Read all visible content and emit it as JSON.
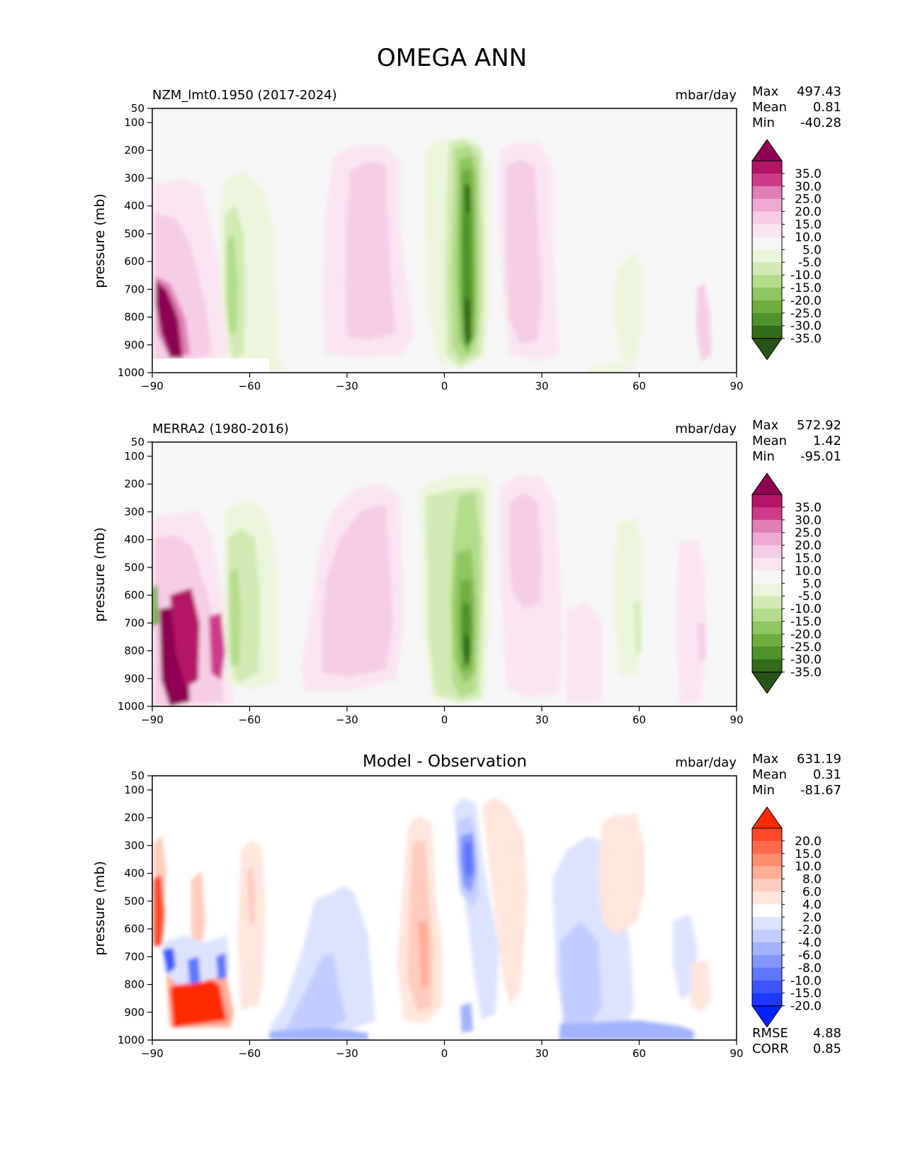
{
  "figure": {
    "title": "OMEGA ANN"
  },
  "chart_data": [
    {
      "type": "heatmap",
      "id": "model",
      "title": "NZM_lmt0.1950 (2017-2024)",
      "units": "mbar/day",
      "ylabel": "pressure (mb)",
      "xlim": [
        -90,
        90
      ],
      "ylim": [
        1000,
        50
      ],
      "xticks": [
        "−90",
        "−60",
        "−30",
        "0",
        "30",
        "60",
        "90"
      ],
      "xtick_values": [
        -90,
        -60,
        -30,
        0,
        30,
        60,
        90
      ],
      "yticks": [
        "50",
        "100",
        "200",
        "300",
        "400",
        "500",
        "600",
        "700",
        "800",
        "900",
        "1000"
      ],
      "ytick_values": [
        50,
        100,
        200,
        300,
        400,
        500,
        600,
        700,
        800,
        900,
        1000
      ],
      "stats": [
        {
          "label": "Max",
          "value": "497.43"
        },
        {
          "label": "Mean",
          "value": "0.81"
        },
        {
          "label": "Min",
          "value": "-40.28"
        }
      ],
      "colorbar": {
        "labels": [
          "35.0",
          "30.0",
          "25.0",
          "20.0",
          "15.0",
          "10.0",
          "5.0",
          "-5.0",
          "-10.0",
          "-15.0",
          "-20.0",
          "-25.0",
          "-30.0",
          "-35.0"
        ],
        "colors": [
          "#8e0152",
          "#b31466",
          "#ce3a8c",
          "#e07fb5",
          "#eeaad2",
          "#f6cde6",
          "#f9e5f0",
          "#f6f6f6",
          "#ebf5dc",
          "#d2ebb4",
          "#b2dc8a",
          "#8fc663",
          "#6fad3c",
          "#4d922b",
          "#326b1a",
          "#275419"
        ]
      },
      "features": [
        {
          "lat": -84,
          "plev": 830,
          "value": 40
        },
        {
          "lat": -80,
          "plev": 600,
          "value": 12
        },
        {
          "lat": -65,
          "plev": 650,
          "value": -18
        },
        {
          "lat": -25,
          "plev": 500,
          "value": 14
        },
        {
          "lat": 7,
          "plev": 600,
          "value": -38
        },
        {
          "lat": 24,
          "plev": 450,
          "value": 15
        },
        {
          "lat": 58,
          "plev": 780,
          "value": -6
        },
        {
          "lat": 80,
          "plev": 850,
          "value": 8
        }
      ]
    },
    {
      "type": "heatmap",
      "id": "obs",
      "title": "MERRA2 (1980-2016)",
      "units": "mbar/day",
      "ylabel": "pressure (mb)",
      "xlim": [
        -90,
        90
      ],
      "ylim": [
        1000,
        50
      ],
      "xticks": [
        "−90",
        "−60",
        "−30",
        "0",
        "30",
        "60",
        "90"
      ],
      "xtick_values": [
        -90,
        -60,
        -30,
        0,
        30,
        60,
        90
      ],
      "yticks": [
        "50",
        "100",
        "200",
        "300",
        "400",
        "500",
        "600",
        "700",
        "800",
        "900",
        "1000"
      ],
      "ytick_values": [
        50,
        100,
        200,
        300,
        400,
        500,
        600,
        700,
        800,
        900,
        1000
      ],
      "stats": [
        {
          "label": "Max",
          "value": "572.92"
        },
        {
          "label": "Mean",
          "value": "1.42"
        },
        {
          "label": "Min",
          "value": "-95.01"
        }
      ],
      "colorbar": {
        "labels": [
          "35.0",
          "30.0",
          "25.0",
          "20.0",
          "15.0",
          "10.0",
          "5.0",
          "-5.0",
          "-10.0",
          "-15.0",
          "-20.0",
          "-25.0",
          "-30.0",
          "-35.0"
        ],
        "colors": [
          "#8e0152",
          "#b31466",
          "#ce3a8c",
          "#e07fb5",
          "#eeaad2",
          "#f6cde6",
          "#f9e5f0",
          "#f6f6f6",
          "#ebf5dc",
          "#d2ebb4",
          "#b2dc8a",
          "#8fc663",
          "#6fad3c",
          "#4d922b",
          "#326b1a",
          "#275419"
        ]
      },
      "features": [
        {
          "lat": -84,
          "plev": 800,
          "value": 40
        },
        {
          "lat": -72,
          "plev": 750,
          "value": 30
        },
        {
          "lat": -64,
          "plev": 650,
          "value": -20
        },
        {
          "lat": -25,
          "plev": 550,
          "value": 12
        },
        {
          "lat": 7,
          "plev": 650,
          "value": -36
        },
        {
          "lat": 25,
          "plev": 500,
          "value": 12
        },
        {
          "lat": 58,
          "plev": 700,
          "value": -7
        },
        {
          "lat": 80,
          "plev": 760,
          "value": 12
        }
      ]
    },
    {
      "type": "heatmap",
      "id": "diff",
      "title": "Model - Observation",
      "units": "mbar/day",
      "ylabel": "pressure (mb)",
      "xlim": [
        -90,
        90
      ],
      "ylim": [
        1000,
        50
      ],
      "xticks": [
        "−90",
        "−60",
        "−30",
        "0",
        "30",
        "60",
        "90"
      ],
      "xtick_values": [
        -90,
        -60,
        -30,
        0,
        30,
        60,
        90
      ],
      "yticks": [
        "50",
        "100",
        "200",
        "300",
        "400",
        "500",
        "600",
        "700",
        "800",
        "900",
        "1000"
      ],
      "ytick_values": [
        50,
        100,
        200,
        300,
        400,
        500,
        600,
        700,
        800,
        900,
        1000
      ],
      "stats": [
        {
          "label": "Max",
          "value": "631.19"
        },
        {
          "label": "Mean",
          "value": "0.31"
        },
        {
          "label": "Min",
          "value": "-81.67"
        }
      ],
      "metrics": [
        {
          "label": "RMSE",
          "value": "4.88"
        },
        {
          "label": "CORR",
          "value": "0.85"
        }
      ],
      "colorbar": {
        "labels": [
          "20.0",
          "15.0",
          "10.0",
          "8.0",
          "6.0",
          "4.0",
          "2.0",
          "-2.0",
          "-4.0",
          "-6.0",
          "-8.0",
          "-10.0",
          "-15.0",
          "-20.0"
        ],
        "colors": [
          "#ff2a00",
          "#ff4a2a",
          "#ff6a4d",
          "#ff8d70",
          "#ffae98",
          "#ffccbd",
          "#ffe6dd",
          "#ffffff",
          "#dde3ff",
          "#c2cdff",
          "#a3b3ff",
          "#8496ff",
          "#5f76ff",
          "#3d56ff",
          "#1e3aff",
          "#0022ff"
        ]
      },
      "features": [
        {
          "lat": -87,
          "plev": 500,
          "value": 15
        },
        {
          "lat": -84,
          "plev": 730,
          "value": -20
        },
        {
          "lat": -76,
          "plev": 880,
          "value": 20
        },
        {
          "lat": -62,
          "plev": 450,
          "value": 6
        },
        {
          "lat": -35,
          "plev": 800,
          "value": -6
        },
        {
          "lat": -5,
          "plev": 650,
          "value": 7
        },
        {
          "lat": 6,
          "plev": 370,
          "value": -14
        },
        {
          "lat": 20,
          "plev": 300,
          "value": 4
        },
        {
          "lat": 45,
          "plev": 900,
          "value": -8
        },
        {
          "lat": 60,
          "plev": 300,
          "value": 4
        }
      ]
    }
  ]
}
